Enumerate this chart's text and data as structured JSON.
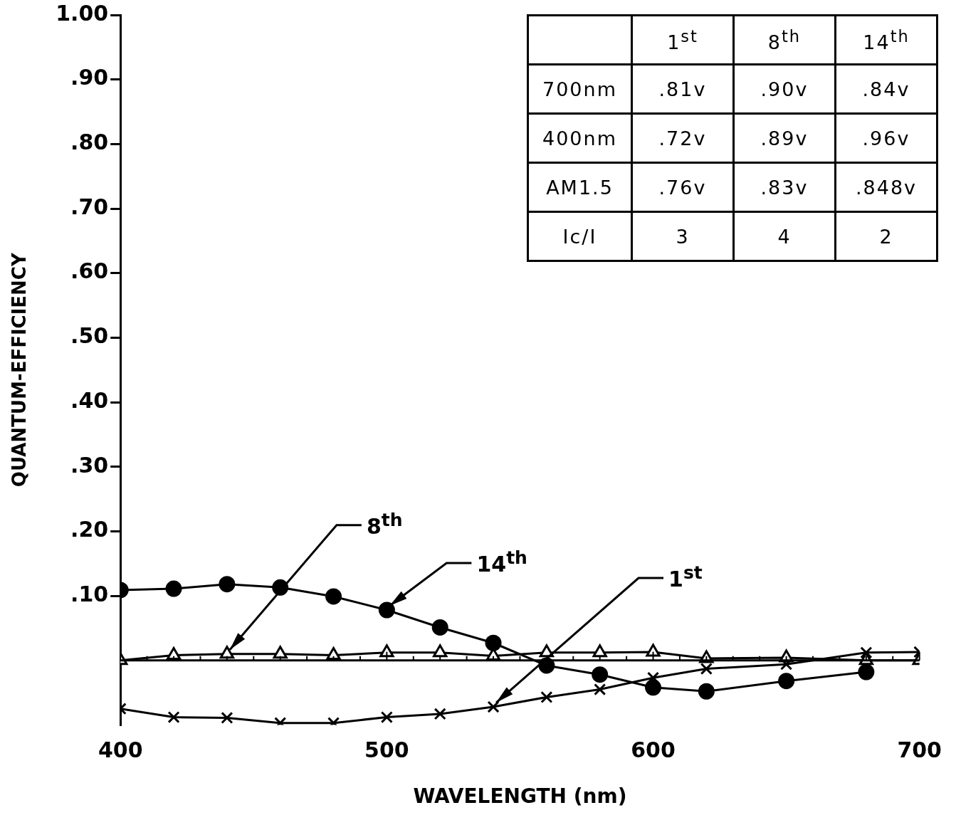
{
  "chart_data": [
    {
      "type": "line",
      "xlabel": "WAVELENGTH (nm)",
      "ylabel": "QUANTUM-EFFICIENCY",
      "x": [
        400,
        420,
        440,
        460,
        480,
        500,
        520,
        540,
        560,
        580,
        600,
        620,
        650,
        680,
        700
      ],
      "series": [
        {
          "color": "#000000",
          "marker": "circle",
          "values": [
            0.109,
            0.111,
            0.118,
            0.113,
            0.099,
            0.078,
            0.051,
            0.027,
            -0.008,
            -0.022,
            -0.042,
            -0.048,
            -0.032,
            -0.018,
            null
          ]
        },
        {
          "color": "#000000",
          "marker": "triangle",
          "values": [
            0,
            0.008,
            0.01,
            0.01,
            0.008,
            0.012,
            0.012,
            0.007,
            0.012,
            0.012,
            0.013,
            0.003,
            0.004,
            0,
            0
          ]
        },
        {
          "color": "#000000",
          "marker": "cross",
          "values": [
            -0.075,
            -0.088,
            -0.089,
            -0.097,
            -0.097,
            -0.088,
            -0.083,
            -0.072,
            -0.057,
            -0.045,
            -0.027,
            -0.013,
            -0.006,
            0.012,
            0.013
          ]
        }
      ],
      "annotations": [
        {
          "text": "8$^{th}$",
          "x": 440,
          "y": 0.01
        },
        {
          "text": "14$^{th}$",
          "x": 500,
          "y": 0.078
        },
        {
          "text": "1$^{st}$",
          "x": 540,
          "y": -0.072
        }
      ],
      "xlim": [
        400,
        700
      ],
      "xticks": [
        400,
        500,
        600,
        700
      ],
      "ylim": [
        -0.1,
        1.0
      ],
      "yticks": [
        {
          "value": 0.1,
          "label": ".10"
        },
        {
          "value": 0.2,
          "label": ".20"
        },
        {
          "value": 0.3,
          "label": ".30"
        },
        {
          "value": 0.4,
          "label": ".40"
        },
        {
          "value": 0.5,
          "label": ".50"
        },
        {
          "value": 0.6,
          "label": ".60"
        },
        {
          "value": 0.7,
          "label": ".70"
        },
        {
          "value": 0.8,
          "label": ".80"
        },
        {
          "value": 0.9,
          "label": ".90"
        },
        {
          "value": 1.0,
          "label": "1.00"
        }
      ],
      "grid": false,
      "legend": false,
      "line_style": "solid"
    },
    {
      "type": "other",
      "categories": [
        null,
        "1$^{st}$",
        "8$^{th}$",
        "14$^{th}$"
      ],
      "y_categories": [
        "700nm",
        "400nm",
        "AM1.5",
        "Ic/I"
      ],
      "cell_labels": [
        [
          ".81v",
          ".90v",
          ".84v"
        ],
        [
          ".72v",
          ".89v",
          ".96v"
        ],
        [
          ".76v",
          ".83v",
          ".848v"
        ],
        [
          "3",
          "4",
          "2"
        ]
      ]
    }
  ]
}
